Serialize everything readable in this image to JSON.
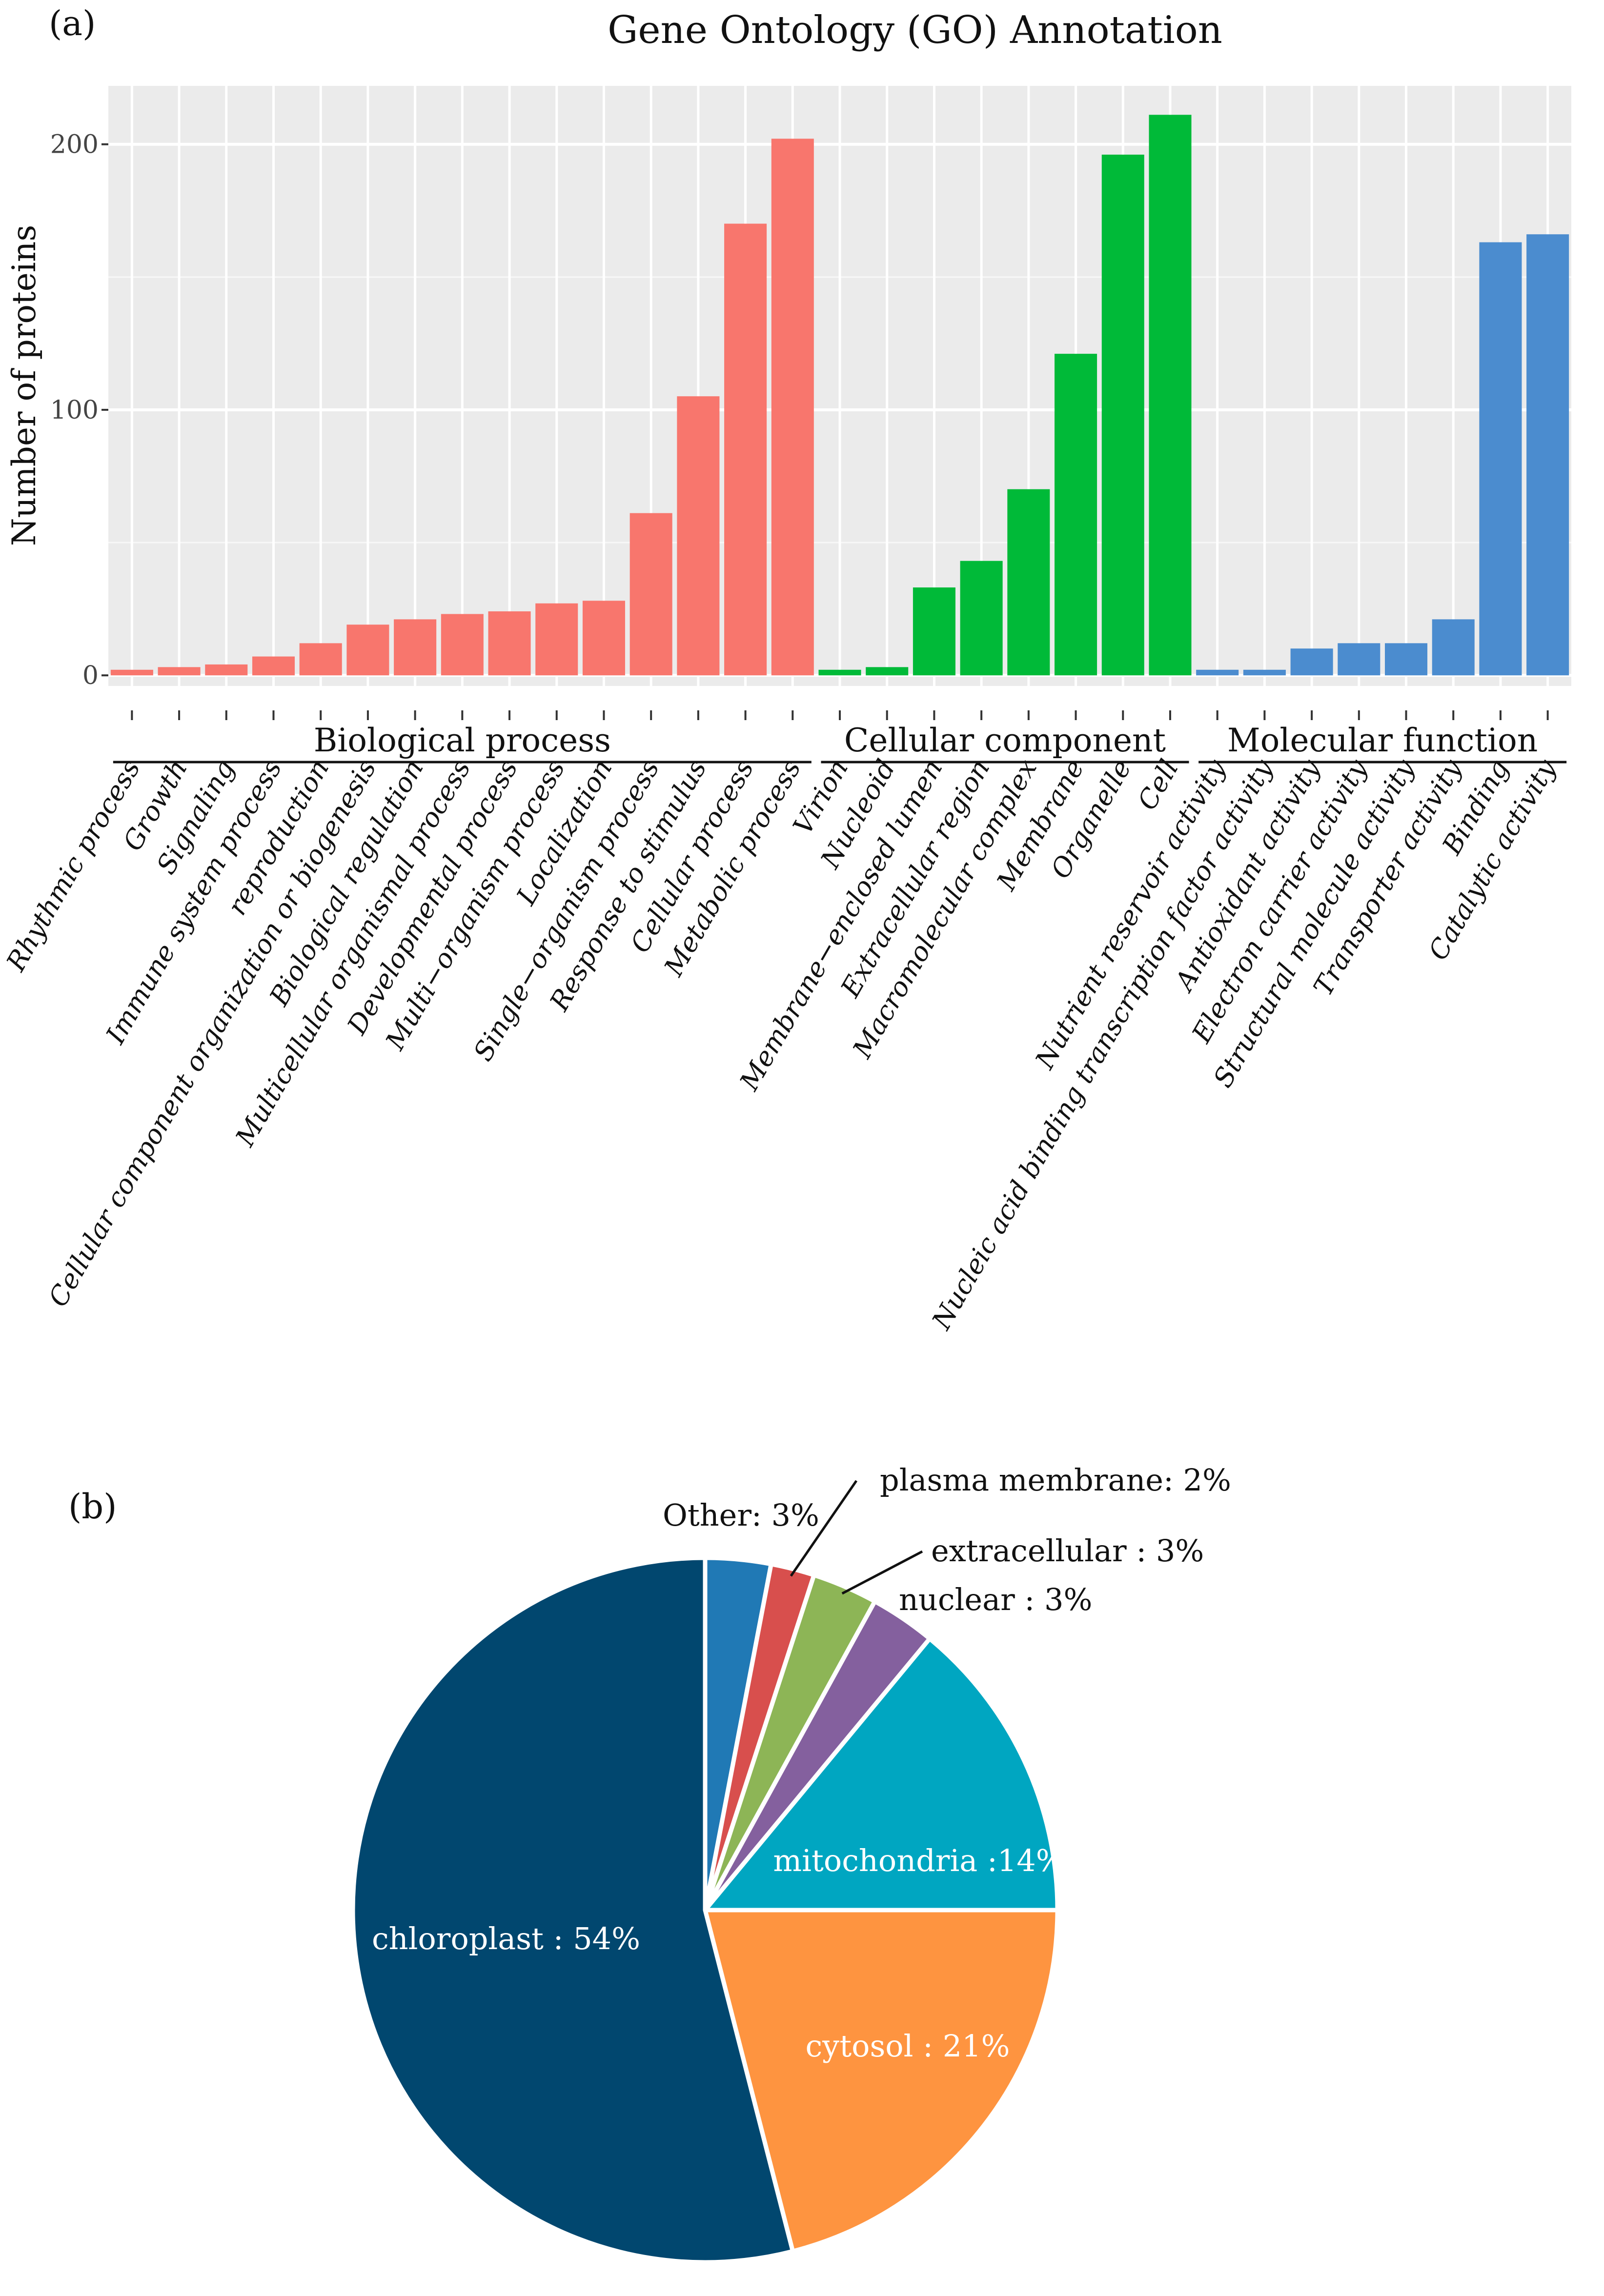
{
  "panel_a": {
    "label": "(a)",
    "title": "Gene Ontology (GO) Annotation",
    "ylabel": "Number of proteins",
    "yticks": [
      0,
      100,
      200
    ],
    "ylim": [
      -4,
      222
    ],
    "group_colors": {
      "Biological process": "#f8766d",
      "Cellular component": "#00ba38",
      "Molecular function": "#4b8ccf"
    },
    "groups": [
      "Biological process",
      "Cellular component",
      "Molecular function"
    ],
    "bar_panel_bg": "#ebebeb"
  },
  "chart_data": [
    {
      "type": "bar",
      "title": "Gene Ontology (GO) Annotation",
      "xlabel": "",
      "ylabel": "Number of proteins",
      "ylim": [
        -4,
        222
      ],
      "grid": true,
      "categories": [
        "Rhythmic process",
        "Growth",
        "Signaling",
        "Immune system process",
        "reproduction",
        "Cellular component organization or biogenesis",
        "Biological regulation",
        "Multicellular organismal process",
        "Developmental process",
        "Multi−organism process",
        "Localization",
        "Single−organism process",
        "Response to stimulus",
        "Cellular process",
        "Metabolic process",
        "Virion",
        "Nucleoid",
        "Membrane−enclosed lumen",
        "Extracellular region",
        "Macromolecular complex",
        "Membrane",
        "Organelle",
        "Cell",
        "Nutrient reservoir activity",
        "Nucleic acid binding transcription factor activity",
        "Antioxidant activity",
        "Electron carrier activity",
        "Structural molecule activity",
        "Transporter activity",
        "Binding",
        "Catalytic activity"
      ],
      "groups": [
        "Biological process",
        "Biological process",
        "Biological process",
        "Biological process",
        "Biological process",
        "Biological process",
        "Biological process",
        "Biological process",
        "Biological process",
        "Biological process",
        "Biological process",
        "Biological process",
        "Biological process",
        "Biological process",
        "Biological process",
        "Cellular component",
        "Cellular component",
        "Cellular component",
        "Cellular component",
        "Cellular component",
        "Cellular component",
        "Cellular component",
        "Cellular component",
        "Molecular function",
        "Molecular function",
        "Molecular function",
        "Molecular function",
        "Molecular function",
        "Molecular function",
        "Molecular function",
        "Molecular function"
      ],
      "values": [
        1,
        2,
        3,
        6,
        11,
        18,
        20,
        22,
        23,
        26,
        27,
        60,
        104,
        169,
        201,
        1,
        2,
        32,
        42,
        69,
        120,
        195,
        210,
        1,
        1,
        9,
        11,
        11,
        20,
        162,
        165
      ]
    },
    {
      "type": "pie",
      "labels": [
        "chloroplast",
        "cytosol",
        "mitochondria",
        "nuclear",
        "extracellular",
        "plasma membrane",
        "Other"
      ],
      "values": [
        54,
        21,
        14,
        3,
        3,
        2,
        3
      ],
      "colors": [
        "#01476f",
        "#fe9440",
        "#00a6c1",
        "#84609e",
        "#8db556",
        "#d84f4d",
        "#2079b5"
      ]
    }
  ],
  "panel_b": {
    "label": "(b)",
    "slice_labels": [
      {
        "name": "chloroplast",
        "text": "chloroplast : 54%"
      },
      {
        "name": "cytosol",
        "text": "cytosol : 21%"
      },
      {
        "name": "mitochondria",
        "text": "mitochondria :14%"
      },
      {
        "name": "nuclear",
        "text": "nuclear :  3%"
      },
      {
        "name": "extracellular",
        "text": "extracellular :  3%"
      },
      {
        "name": "plasma membrane",
        "text": "plasma membrane:  2%"
      },
      {
        "name": "Other",
        "text": "Other: 3%"
      }
    ]
  }
}
